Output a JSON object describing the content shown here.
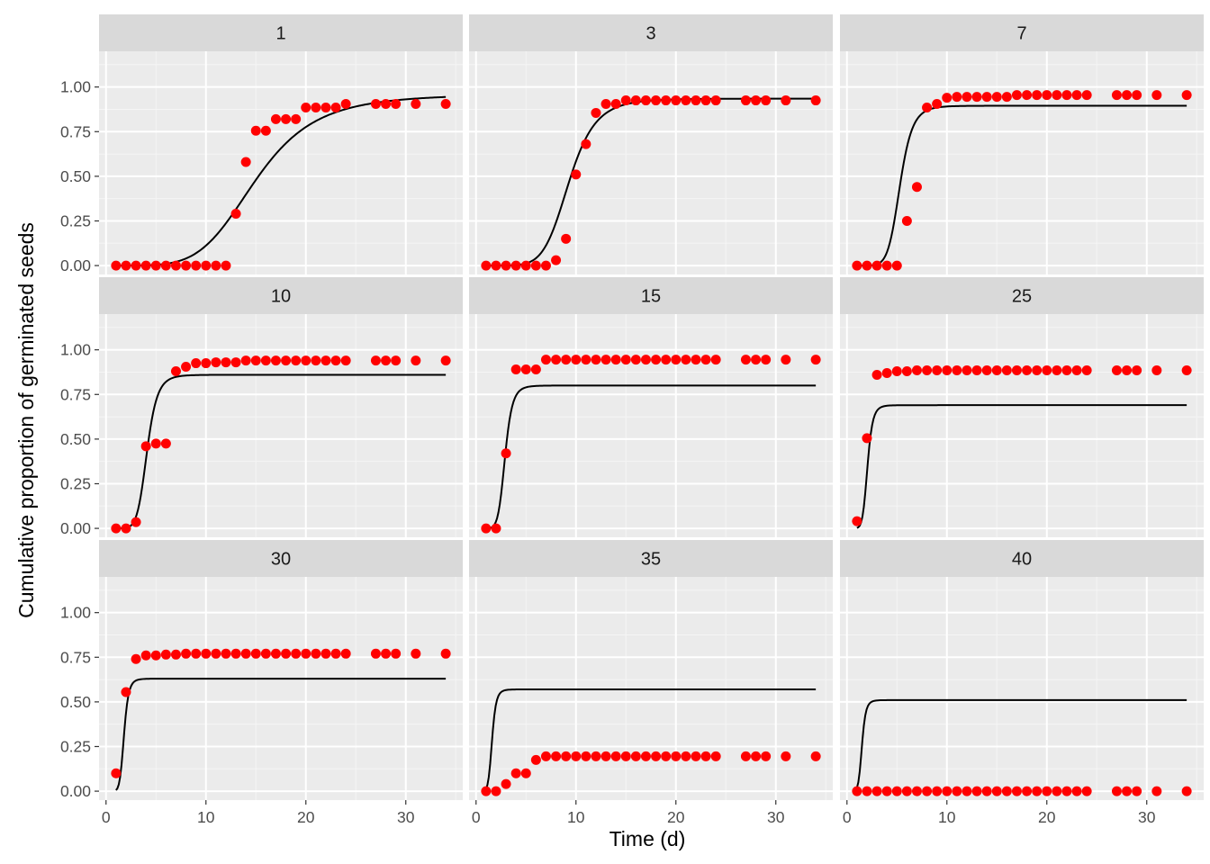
{
  "chart_data": {
    "type": "scatter",
    "subtype": "faceted scatter with fitted curves",
    "xlabel": "Time (d)",
    "ylabel": "Cumulative proportion of germinated seeds",
    "xlim": [
      -0.7,
      35.7
    ],
    "ylim": [
      -0.05,
      1.2
    ],
    "x_ticks": [
      0,
      10,
      20,
      30
    ],
    "y_ticks": [
      0.0,
      0.25,
      0.5,
      0.75,
      1.0
    ],
    "y_tick_labels": [
      "0.00",
      "0.25",
      "0.50",
      "0.75",
      "1.00"
    ],
    "x_tick_labels": [
      "0",
      "10",
      "20",
      "30"
    ],
    "x": [
      1,
      2,
      3,
      4,
      5,
      6,
      7,
      8,
      9,
      10,
      11,
      12,
      13,
      14,
      15,
      16,
      17,
      18,
      19,
      20,
      21,
      22,
      23,
      24,
      27,
      28,
      29,
      31,
      34
    ],
    "point_color": "#ff0000",
    "curve_color": "#000000",
    "panel_background": "#ebebeb",
    "strip_background": "#d9d9d9",
    "panels": [
      {
        "label": "1",
        "points": [
          0,
          0,
          0,
          0,
          0,
          0,
          0,
          0,
          0,
          0,
          0,
          0,
          0.29,
          0.58,
          0.755,
          0.755,
          0.82,
          0.82,
          0.82,
          0.885,
          0.885,
          0.885,
          0.885,
          0.905,
          0.905,
          0.905,
          0.905,
          0.905,
          0.905
        ],
        "fit": {
          "d": 0.96,
          "e": 15.0,
          "b": 5.0,
          "x_from": 1,
          "x_to": 34
        }
      },
      {
        "label": "3",
        "points": [
          0,
          0,
          0,
          0,
          0,
          0,
          0,
          0.03,
          0.15,
          0.51,
          0.68,
          0.855,
          0.905,
          0.905,
          0.925,
          0.925,
          0.925,
          0.925,
          0.925,
          0.925,
          0.925,
          0.925,
          0.925,
          0.925,
          0.925,
          0.925,
          0.925,
          0.925,
          0.925
        ],
        "fit": {
          "d": 0.935,
          "e": 9.3,
          "b": 7.0,
          "x_from": 1,
          "x_to": 34
        }
      },
      {
        "label": "7",
        "points": [
          0,
          0,
          0,
          0,
          0,
          0.25,
          0.44,
          0.885,
          0.905,
          0.94,
          0.945,
          0.945,
          0.945,
          0.945,
          0.945,
          0.945,
          0.955,
          0.955,
          0.955,
          0.955,
          0.955,
          0.955,
          0.955,
          0.955,
          0.955,
          0.955,
          0.955,
          0.955,
          0.955
        ],
        "fit": {
          "d": 0.895,
          "e": 5.3,
          "b": 8.5,
          "x_from": 1,
          "x_to": 34
        }
      },
      {
        "label": "10",
        "points": [
          0,
          0,
          0.035,
          0.46,
          0.475,
          0.475,
          0.88,
          0.905,
          0.925,
          0.925,
          0.93,
          0.93,
          0.93,
          0.94,
          0.94,
          0.94,
          0.94,
          0.94,
          0.94,
          0.94,
          0.94,
          0.94,
          0.94,
          0.94,
          0.94,
          0.94,
          0.94,
          0.94,
          0.94
        ],
        "fit": {
          "d": 0.86,
          "e": 4.1,
          "b": 8.0,
          "x_from": 1,
          "x_to": 34
        }
      },
      {
        "label": "15",
        "points": [
          0,
          0,
          0.42,
          0.89,
          0.89,
          0.89,
          0.945,
          0.945,
          0.945,
          0.945,
          0.945,
          0.945,
          0.945,
          0.945,
          0.945,
          0.945,
          0.945,
          0.945,
          0.945,
          0.945,
          0.945,
          0.945,
          0.945,
          0.945,
          0.945,
          0.945,
          0.945,
          0.945,
          0.945
        ],
        "fit": {
          "d": 0.8,
          "e": 2.9,
          "b": 8.0,
          "x_from": 1,
          "x_to": 34
        }
      },
      {
        "label": "25",
        "points": [
          0.04,
          0.505,
          0.86,
          0.87,
          0.88,
          0.88,
          0.885,
          0.885,
          0.885,
          0.885,
          0.885,
          0.885,
          0.885,
          0.885,
          0.885,
          0.885,
          0.885,
          0.885,
          0.885,
          0.885,
          0.885,
          0.885,
          0.885,
          0.885,
          0.885,
          0.885,
          0.885,
          0.885,
          0.885
        ],
        "fit": {
          "d": 0.69,
          "e": 2.05,
          "b": 8.0,
          "x_from": 1,
          "x_to": 34
        }
      },
      {
        "label": "30",
        "points": [
          0.1,
          0.555,
          0.74,
          0.76,
          0.76,
          0.765,
          0.765,
          0.77,
          0.77,
          0.77,
          0.77,
          0.77,
          0.77,
          0.77,
          0.77,
          0.77,
          0.77,
          0.77,
          0.77,
          0.77,
          0.77,
          0.77,
          0.77,
          0.77,
          0.77,
          0.77,
          0.77,
          0.77,
          0.77
        ],
        "fit": {
          "d": 0.63,
          "e": 1.8,
          "b": 8.0,
          "x_from": 1,
          "x_to": 34
        }
      },
      {
        "label": "35",
        "points": [
          0,
          0,
          0.04,
          0.1,
          0.1,
          0.175,
          0.195,
          0.195,
          0.195,
          0.195,
          0.195,
          0.195,
          0.195,
          0.195,
          0.195,
          0.195,
          0.195,
          0.195,
          0.195,
          0.195,
          0.195,
          0.195,
          0.195,
          0.195,
          0.195,
          0.195,
          0.195,
          0.195,
          0.195
        ],
        "fit": {
          "d": 0.57,
          "e": 1.6,
          "b": 8.0,
          "x_from": 1,
          "x_to": 34
        }
      },
      {
        "label": "40",
        "points": [
          0,
          0,
          0,
          0,
          0,
          0,
          0,
          0,
          0,
          0,
          0,
          0,
          0,
          0,
          0,
          0,
          0,
          0,
          0,
          0,
          0,
          0,
          0,
          0,
          0,
          0,
          0,
          0,
          0
        ],
        "fit": {
          "d": 0.51,
          "e": 1.5,
          "b": 8.0,
          "x_from": 1,
          "x_to": 34
        }
      }
    ]
  }
}
